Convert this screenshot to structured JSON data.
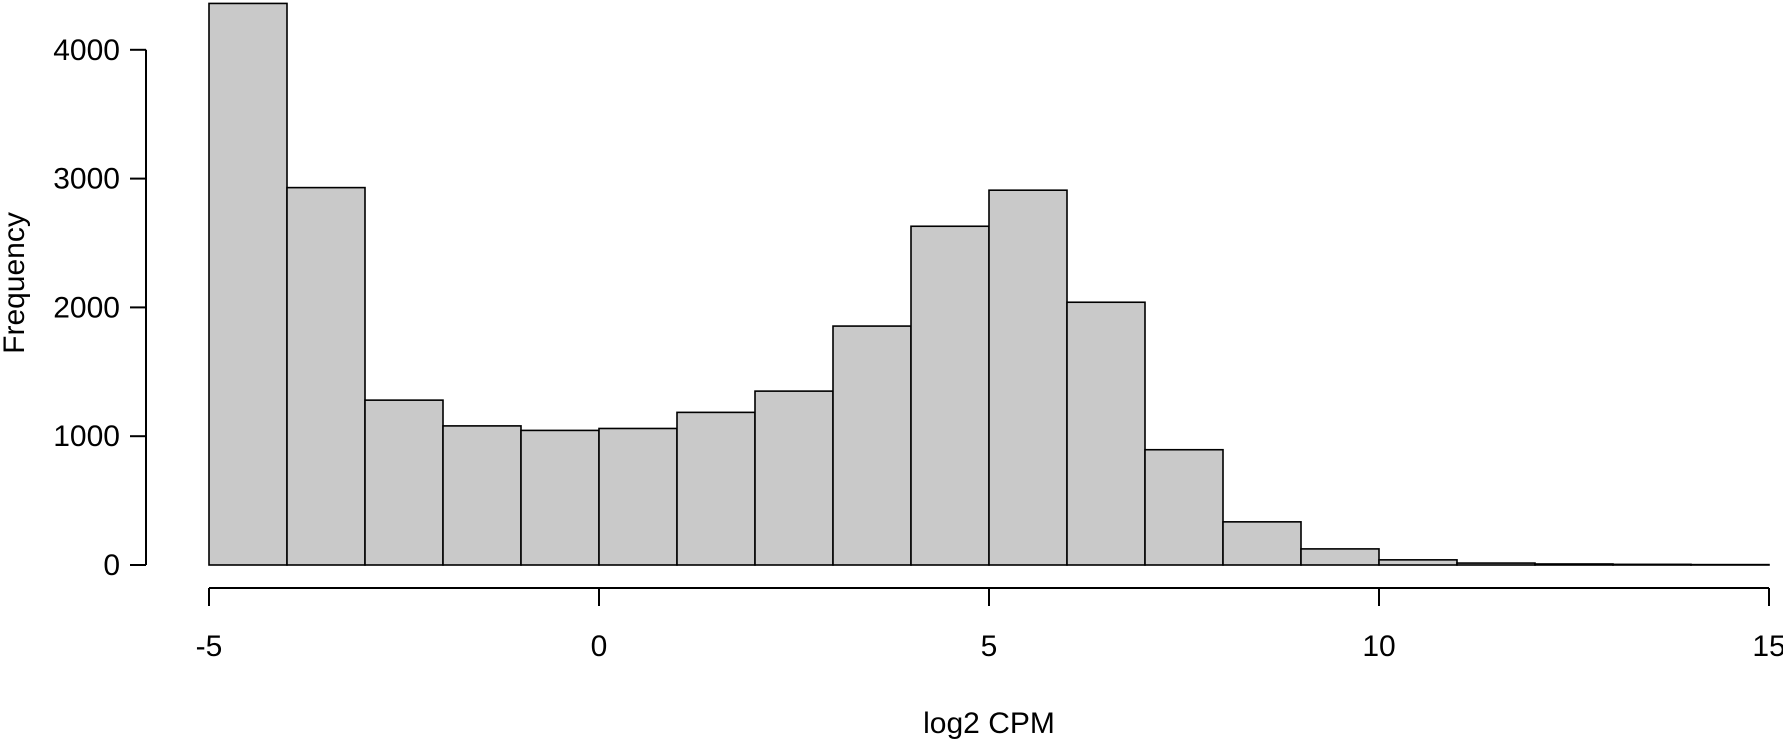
{
  "chart_data": {
    "type": "bar",
    "subtype": "histogram",
    "title": "",
    "xlabel": "log2 CPM",
    "ylabel": "Frequency",
    "bin_edges": [
      -5,
      -4,
      -3,
      -2,
      -1,
      0,
      1,
      2,
      3,
      4,
      5,
      6,
      7,
      8,
      9,
      10,
      11,
      12,
      13,
      14,
      15
    ],
    "values": [
      4360,
      2930,
      1280,
      1080,
      1045,
      1060,
      1185,
      1350,
      1855,
      2630,
      2910,
      2040,
      895,
      335,
      125,
      40,
      15,
      8,
      5,
      3
    ],
    "xlim": [
      -5,
      15
    ],
    "ylim": [
      0,
      4360
    ],
    "x_ticks": [
      -5,
      0,
      5,
      10,
      15
    ],
    "x_tick_labels": [
      "-5",
      "0",
      "5",
      "10",
      "15"
    ],
    "y_ticks": [
      0,
      1000,
      2000,
      3000,
      4000
    ],
    "y_tick_labels": [
      "0",
      "1000",
      "2000",
      "3000",
      "4000"
    ],
    "bar_fill": "#c9c9c9",
    "bar_stroke": "#000000",
    "grid": false,
    "legend": "none"
  }
}
